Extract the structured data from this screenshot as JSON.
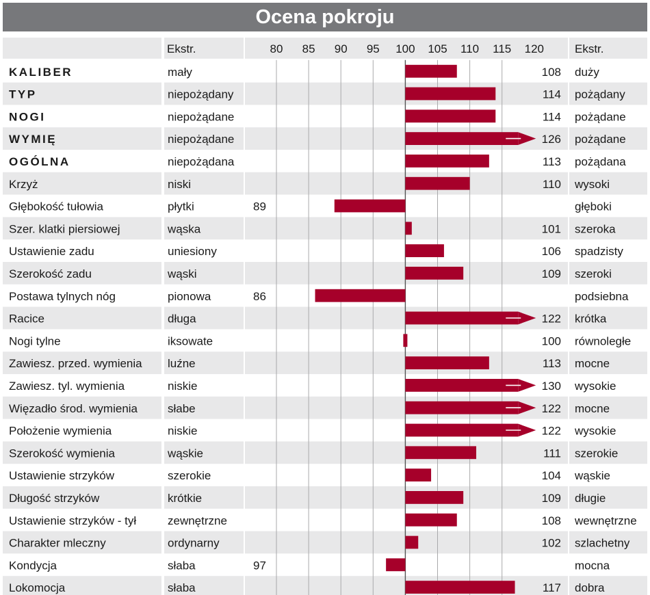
{
  "title": "Ocena pokroju",
  "header": {
    "left_extreme": "Ekstr.",
    "right_extreme": "Ekstr."
  },
  "colors": {
    "bar": "#a6002a",
    "header_bg": "#77787b",
    "stripe": "#e8e8e9",
    "grid": "#a9a9ab"
  },
  "chart_data": {
    "type": "bar",
    "orientation": "horizontal",
    "title": "Ocena pokroju",
    "baseline": 100,
    "xlim": [
      78,
      120
    ],
    "xticks": [
      80,
      85,
      90,
      95,
      100,
      105,
      110,
      115,
      120
    ],
    "grid": true,
    "overflow_arrow_beyond": 120,
    "rows": [
      {
        "trait": "KALIBER",
        "bold": true,
        "low": "mały",
        "high": "duży",
        "value": 108
      },
      {
        "trait": "TYP",
        "bold": true,
        "low": "niepożądany",
        "high": "pożądany",
        "value": 114
      },
      {
        "trait": "NOGI",
        "bold": true,
        "low": "niepożądane",
        "high": "pożądane",
        "value": 114
      },
      {
        "trait": "WYMIĘ",
        "bold": true,
        "low": "niepożądane",
        "high": "pożądane",
        "value": 126
      },
      {
        "trait": "OGÓLNA",
        "bold": true,
        "low": "niepożądana",
        "high": "pożądana",
        "value": 113
      },
      {
        "trait": "Krzyż",
        "bold": false,
        "low": "niski",
        "high": "wysoki",
        "value": 110
      },
      {
        "trait": "Głębokość tułowia",
        "bold": false,
        "low": "płytki",
        "high": "głęboki",
        "value": 89
      },
      {
        "trait": "Szer. klatki piersiowej",
        "bold": false,
        "low": "wąska",
        "high": "szeroka",
        "value": 101
      },
      {
        "trait": "Ustawienie zadu",
        "bold": false,
        "low": "uniesiony",
        "high": "spadzisty",
        "value": 106
      },
      {
        "trait": "Szerokość zadu",
        "bold": false,
        "low": "wąski",
        "high": "szeroki",
        "value": 109
      },
      {
        "trait": "Postawa tylnych nóg",
        "bold": false,
        "low": "pionowa",
        "high": "podsiebna",
        "value": 86
      },
      {
        "trait": "Racice",
        "bold": false,
        "low": "długa",
        "high": "krótka",
        "value": 122
      },
      {
        "trait": "Nogi tylne",
        "bold": false,
        "low": "iksowate",
        "high": "równoległe",
        "value": 100
      },
      {
        "trait": "Zawiesz. przed. wymienia",
        "bold": false,
        "low": "luźne",
        "high": "mocne",
        "value": 113
      },
      {
        "trait": "Zawiesz. tyl. wymienia",
        "bold": false,
        "low": "niskie",
        "high": "wysokie",
        "value": 130
      },
      {
        "trait": "Więzadło środ. wymienia",
        "bold": false,
        "low": "słabe",
        "high": "mocne",
        "value": 122
      },
      {
        "trait": "Położenie wymienia",
        "bold": false,
        "low": "niskie",
        "high": "wysokie",
        "value": 122
      },
      {
        "trait": "Szerokość wymienia",
        "bold": false,
        "low": "wąskie",
        "high": "szerokie",
        "value": 111
      },
      {
        "trait": "Ustawienie strzyków",
        "bold": false,
        "low": "szerokie",
        "high": "wąskie",
        "value": 104
      },
      {
        "trait": "Długość strzyków",
        "bold": false,
        "low": "krótkie",
        "high": "długie",
        "value": 109
      },
      {
        "trait": "Ustawienie strzyków - tył",
        "bold": false,
        "low": "zewnętrzne",
        "high": "wewnętrzne",
        "value": 108
      },
      {
        "trait": "Charakter mleczny",
        "bold": false,
        "low": "ordynarny",
        "high": "szlachetny",
        "value": 102
      },
      {
        "trait": "Kondycja",
        "bold": false,
        "low": "słaba",
        "high": "mocna",
        "value": 97
      },
      {
        "trait": "Lokomocja",
        "bold": false,
        "low": "słaba",
        "high": "dobra",
        "value": 117
      }
    ]
  }
}
